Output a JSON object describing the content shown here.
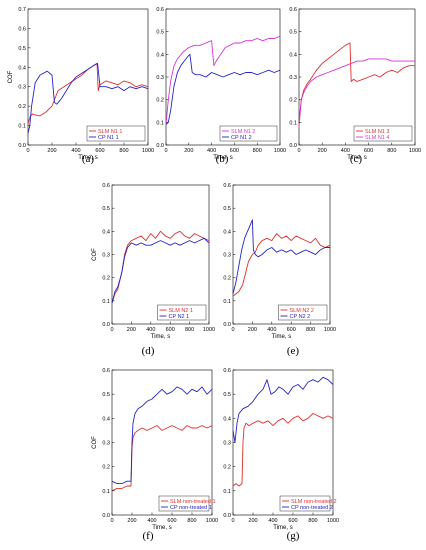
{
  "chart_data": [
    {
      "id": "a",
      "caption": "(a)",
      "type": "line",
      "xlabel": "Time, s",
      "ylabel": "COF",
      "xlim": [
        0,
        1000
      ],
      "ylim": [
        0,
        0.7
      ],
      "xticks": [
        0,
        200,
        400,
        600,
        800,
        1000
      ],
      "yticks": [
        0.0,
        0.1,
        0.2,
        0.3,
        0.4,
        0.5,
        0.6,
        0.7
      ],
      "ytick_labels": [
        "0.0",
        "0.1",
        "0.2",
        "0.3",
        "0.4",
        "0.5",
        "0.6",
        "0.7"
      ],
      "show_xlabel": true,
      "show_ylabel": true,
      "legend_position": "bottom-right",
      "series": [
        {
          "name": "SLM N1 1",
          "color": "#e0302c",
          "x": [
            0,
            20,
            40,
            60,
            100,
            150,
            200,
            250,
            300,
            350,
            400,
            450,
            500,
            550,
            575,
            585,
            600,
            650,
            700,
            750,
            800,
            850,
            900,
            950,
            1000
          ],
          "y": [
            0.11,
            0.15,
            0.16,
            0.155,
            0.15,
            0.17,
            0.2,
            0.28,
            0.3,
            0.32,
            0.34,
            0.36,
            0.39,
            0.41,
            0.42,
            0.28,
            0.31,
            0.33,
            0.32,
            0.31,
            0.33,
            0.32,
            0.3,
            0.31,
            0.3
          ]
        },
        {
          "name": "CP N1 1",
          "color": "#2424c8",
          "x": [
            0,
            15,
            30,
            60,
            100,
            130,
            160,
            200,
            220,
            240,
            280,
            320,
            360,
            400,
            450,
            500,
            550,
            580,
            600,
            650,
            700,
            750,
            800,
            850,
            900,
            950,
            1000
          ],
          "y": [
            0.06,
            0.1,
            0.2,
            0.32,
            0.36,
            0.37,
            0.38,
            0.36,
            0.22,
            0.21,
            0.24,
            0.28,
            0.32,
            0.35,
            0.37,
            0.39,
            0.41,
            0.42,
            0.3,
            0.3,
            0.29,
            0.3,
            0.28,
            0.3,
            0.29,
            0.3,
            0.29
          ]
        }
      ]
    },
    {
      "id": "b",
      "caption": "(b)",
      "type": "line",
      "xlabel": "Time, s",
      "ylabel": "",
      "xlim": [
        0,
        1000
      ],
      "ylim": [
        0,
        0.6
      ],
      "xticks": [
        0,
        200,
        400,
        600,
        800,
        1000
      ],
      "yticks": [
        0.0,
        0.1,
        0.2,
        0.3,
        0.4,
        0.5,
        0.6
      ],
      "ytick_labels": [
        "0.0",
        "0.1",
        "0.2",
        "0.3",
        "0.4",
        "0.5",
        "0.6"
      ],
      "show_xlabel": true,
      "show_ylabel": false,
      "legend_position": "bottom-right",
      "series": [
        {
          "name": "SLM N1 2",
          "color": "#d634d6",
          "x": [
            0,
            20,
            40,
            70,
            100,
            150,
            200,
            250,
            300,
            350,
            400,
            420,
            440,
            480,
            520,
            560,
            600,
            650,
            700,
            750,
            800,
            850,
            900,
            950,
            1000
          ],
          "y": [
            0.09,
            0.2,
            0.28,
            0.35,
            0.38,
            0.41,
            0.43,
            0.44,
            0.44,
            0.45,
            0.46,
            0.35,
            0.37,
            0.4,
            0.43,
            0.44,
            0.45,
            0.45,
            0.46,
            0.46,
            0.47,
            0.46,
            0.47,
            0.47,
            0.48
          ]
        },
        {
          "name": "CP N1 2",
          "color": "#2424c8",
          "x": [
            0,
            20,
            40,
            70,
            100,
            130,
            160,
            190,
            210,
            230,
            260,
            300,
            350,
            400,
            450,
            500,
            550,
            600,
            650,
            700,
            750,
            800,
            850,
            900,
            950,
            1000
          ],
          "y": [
            0.09,
            0.1,
            0.15,
            0.26,
            0.32,
            0.35,
            0.37,
            0.39,
            0.4,
            0.32,
            0.31,
            0.31,
            0.3,
            0.32,
            0.31,
            0.3,
            0.31,
            0.32,
            0.31,
            0.32,
            0.32,
            0.31,
            0.32,
            0.33,
            0.32,
            0.33
          ]
        }
      ]
    },
    {
      "id": "c",
      "caption": "(c)",
      "type": "line",
      "xlabel": "Time, s",
      "ylabel": "",
      "xlim": [
        0,
        1000
      ],
      "ylim": [
        0,
        0.6
      ],
      "xticks": [
        0,
        200,
        400,
        600,
        800,
        1000
      ],
      "yticks": [
        0.0,
        0.1,
        0.2,
        0.3,
        0.4,
        0.5,
        0.6
      ],
      "ytick_labels": [
        "0.0",
        "0.1",
        "0.2",
        "0.3",
        "0.4",
        "0.5",
        "0.6"
      ],
      "show_xlabel": true,
      "show_ylabel": false,
      "legend_position": "bottom-right",
      "series": [
        {
          "name": "SLM N1 3",
          "color": "#e0302c",
          "x": [
            0,
            20,
            40,
            70,
            100,
            150,
            200,
            250,
            300,
            350,
            400,
            440,
            450,
            470,
            500,
            550,
            600,
            650,
            700,
            750,
            800,
            850,
            900,
            950,
            1000
          ],
          "y": [
            0.1,
            0.2,
            0.24,
            0.27,
            0.29,
            0.33,
            0.36,
            0.38,
            0.4,
            0.42,
            0.44,
            0.45,
            0.28,
            0.29,
            0.28,
            0.29,
            0.3,
            0.31,
            0.3,
            0.32,
            0.33,
            0.32,
            0.34,
            0.35,
            0.35
          ]
        },
        {
          "name": "SLM N1 4",
          "color": "#d634d6",
          "x": [
            0,
            20,
            40,
            70,
            100,
            150,
            200,
            250,
            300,
            350,
            400,
            450,
            500,
            550,
            600,
            650,
            700,
            750,
            800,
            850,
            900,
            950,
            1000
          ],
          "y": [
            0.08,
            0.2,
            0.23,
            0.26,
            0.28,
            0.3,
            0.31,
            0.32,
            0.33,
            0.34,
            0.35,
            0.36,
            0.37,
            0.37,
            0.38,
            0.38,
            0.38,
            0.38,
            0.37,
            0.37,
            0.37,
            0.37,
            0.37
          ]
        }
      ]
    },
    {
      "id": "d",
      "caption": "(d)",
      "type": "line",
      "xlabel": "Time, s",
      "ylabel": "COF",
      "xlim": [
        0,
        1000
      ],
      "ylim": [
        0,
        0.6
      ],
      "xticks": [
        0,
        200,
        400,
        600,
        800,
        1000
      ],
      "yticks": [
        0.0,
        0.1,
        0.2,
        0.3,
        0.4,
        0.5,
        0.6
      ],
      "ytick_labels": [
        "0.0",
        "0.1",
        "0.2",
        "0.3",
        "0.4",
        "0.5",
        "0.6"
      ],
      "show_xlabel": true,
      "show_ylabel": true,
      "legend_position": "bottom-right",
      "series": [
        {
          "name": "SLM N2 1",
          "color": "#e0302c",
          "x": [
            0,
            30,
            60,
            100,
            130,
            160,
            200,
            250,
            300,
            350,
            400,
            450,
            500,
            550,
            600,
            650,
            700,
            750,
            800,
            850,
            900,
            950,
            1000
          ],
          "y": [
            0.09,
            0.13,
            0.15,
            0.22,
            0.3,
            0.34,
            0.36,
            0.37,
            0.38,
            0.36,
            0.39,
            0.37,
            0.4,
            0.38,
            0.37,
            0.39,
            0.4,
            0.38,
            0.37,
            0.39,
            0.38,
            0.37,
            0.36
          ]
        },
        {
          "name": "CP N2 1",
          "color": "#2424c8",
          "x": [
            0,
            30,
            60,
            100,
            130,
            160,
            200,
            250,
            300,
            350,
            400,
            450,
            500,
            550,
            600,
            650,
            700,
            750,
            800,
            850,
            900,
            950,
            1000
          ],
          "y": [
            0.09,
            0.14,
            0.16,
            0.22,
            0.29,
            0.33,
            0.35,
            0.34,
            0.35,
            0.34,
            0.34,
            0.35,
            0.36,
            0.35,
            0.34,
            0.35,
            0.34,
            0.35,
            0.36,
            0.35,
            0.36,
            0.37,
            0.35
          ]
        }
      ]
    },
    {
      "id": "e",
      "caption": "(e)",
      "type": "line",
      "xlabel": "Time, s",
      "ylabel": "",
      "xlim": [
        0,
        1000
      ],
      "ylim": [
        0,
        0.6
      ],
      "xticks": [
        0,
        200,
        400,
        600,
        800,
        1000
      ],
      "yticks": [
        0.0,
        0.1,
        0.2,
        0.3,
        0.4,
        0.5,
        0.6
      ],
      "ytick_labels": [
        "0.0",
        "0.1",
        "0.2",
        "0.3",
        "0.4",
        "0.5",
        "0.6"
      ],
      "show_xlabel": true,
      "show_ylabel": false,
      "legend_position": "bottom-right",
      "series": [
        {
          "name": "SLM N2 2",
          "color": "#e0302c",
          "x": [
            0,
            30,
            60,
            100,
            130,
            160,
            200,
            230,
            260,
            300,
            350,
            400,
            450,
            500,
            550,
            600,
            650,
            700,
            750,
            800,
            850,
            900,
            950,
            1000
          ],
          "y": [
            0.12,
            0.13,
            0.14,
            0.17,
            0.22,
            0.27,
            0.3,
            0.31,
            0.34,
            0.36,
            0.37,
            0.36,
            0.39,
            0.37,
            0.38,
            0.36,
            0.38,
            0.37,
            0.36,
            0.35,
            0.37,
            0.34,
            0.33,
            0.34
          ]
        },
        {
          "name": "CP N2 2",
          "color": "#2424c8",
          "x": [
            0,
            30,
            60,
            90,
            120,
            150,
            180,
            200,
            210,
            230,
            260,
            300,
            350,
            400,
            450,
            500,
            550,
            600,
            650,
            700,
            750,
            800,
            850,
            900,
            950,
            1000
          ],
          "y": [
            0.13,
            0.18,
            0.25,
            0.32,
            0.37,
            0.4,
            0.43,
            0.45,
            0.32,
            0.3,
            0.29,
            0.3,
            0.32,
            0.33,
            0.31,
            0.32,
            0.31,
            0.32,
            0.3,
            0.31,
            0.32,
            0.31,
            0.3,
            0.32,
            0.33,
            0.33
          ]
        }
      ]
    },
    {
      "id": "f",
      "caption": "(f)",
      "type": "line",
      "xlabel": "Time, s",
      "ylabel": "COF",
      "xlim": [
        0,
        1000
      ],
      "ylim": [
        0,
        0.6
      ],
      "xticks": [
        0,
        200,
        400,
        600,
        800,
        1000
      ],
      "yticks": [
        0.0,
        0.1,
        0.2,
        0.3,
        0.4,
        0.5,
        0.6
      ],
      "ytick_labels": [
        "0.0",
        "0.1",
        "0.2",
        "0.3",
        "0.4",
        "0.5",
        "0.6"
      ],
      "show_xlabel": true,
      "show_ylabel": true,
      "legend_position": "bottom-right",
      "series": [
        {
          "name": "SLM  non-treated 1",
          "color": "#e0302c",
          "x": [
            0,
            50,
            100,
            150,
            190,
            200,
            210,
            230,
            260,
            300,
            350,
            400,
            450,
            500,
            550,
            600,
            650,
            700,
            750,
            800,
            850,
            900,
            950,
            1000
          ],
          "y": [
            0.1,
            0.11,
            0.11,
            0.12,
            0.12,
            0.28,
            0.32,
            0.34,
            0.35,
            0.36,
            0.35,
            0.36,
            0.37,
            0.35,
            0.36,
            0.37,
            0.36,
            0.35,
            0.37,
            0.36,
            0.36,
            0.37,
            0.36,
            0.37
          ]
        },
        {
          "name": "CP non-treated 1",
          "color": "#2424c8",
          "x": [
            0,
            50,
            100,
            150,
            190,
            200,
            210,
            230,
            260,
            300,
            350,
            400,
            450,
            500,
            550,
            600,
            650,
            700,
            750,
            800,
            850,
            900,
            950,
            1000
          ],
          "y": [
            0.14,
            0.13,
            0.13,
            0.14,
            0.14,
            0.3,
            0.38,
            0.42,
            0.44,
            0.45,
            0.47,
            0.48,
            0.5,
            0.52,
            0.5,
            0.51,
            0.53,
            0.52,
            0.5,
            0.52,
            0.51,
            0.53,
            0.5,
            0.52
          ]
        }
      ]
    },
    {
      "id": "g",
      "caption": "(g)",
      "type": "line",
      "xlabel": "Time, s",
      "ylabel": "",
      "xlim": [
        0,
        1000
      ],
      "ylim": [
        0,
        0.6
      ],
      "xticks": [
        0,
        200,
        400,
        600,
        800,
        1000
      ],
      "yticks": [
        0.0,
        0.1,
        0.2,
        0.3,
        0.4,
        0.5,
        0.6
      ],
      "ytick_labels": [
        "0.0",
        "0.1",
        "0.2",
        "0.3",
        "0.4",
        "0.5",
        "0.6"
      ],
      "show_xlabel": true,
      "show_ylabel": false,
      "legend_position": "bottom-right",
      "series": [
        {
          "name": "SLM  non-treated 2",
          "color": "#e0302c",
          "x": [
            0,
            30,
            60,
            90,
            100,
            110,
            130,
            160,
            200,
            250,
            300,
            350,
            400,
            450,
            500,
            550,
            600,
            650,
            700,
            750,
            800,
            850,
            900,
            950,
            1000
          ],
          "y": [
            0.12,
            0.13,
            0.12,
            0.13,
            0.3,
            0.36,
            0.38,
            0.37,
            0.38,
            0.39,
            0.38,
            0.39,
            0.37,
            0.39,
            0.4,
            0.38,
            0.4,
            0.41,
            0.39,
            0.4,
            0.42,
            0.41,
            0.4,
            0.41,
            0.4
          ]
        },
        {
          "name": "CP non-treated 2",
          "color": "#2424c8",
          "x": [
            0,
            20,
            40,
            60,
            100,
            150,
            200,
            250,
            300,
            340,
            380,
            420,
            460,
            500,
            550,
            600,
            650,
            700,
            750,
            800,
            850,
            900,
            950,
            1000
          ],
          "y": [
            0.35,
            0.3,
            0.38,
            0.42,
            0.44,
            0.45,
            0.47,
            0.5,
            0.52,
            0.56,
            0.5,
            0.51,
            0.53,
            0.52,
            0.5,
            0.53,
            0.54,
            0.52,
            0.55,
            0.56,
            0.55,
            0.57,
            0.56,
            0.54
          ]
        }
      ]
    }
  ]
}
